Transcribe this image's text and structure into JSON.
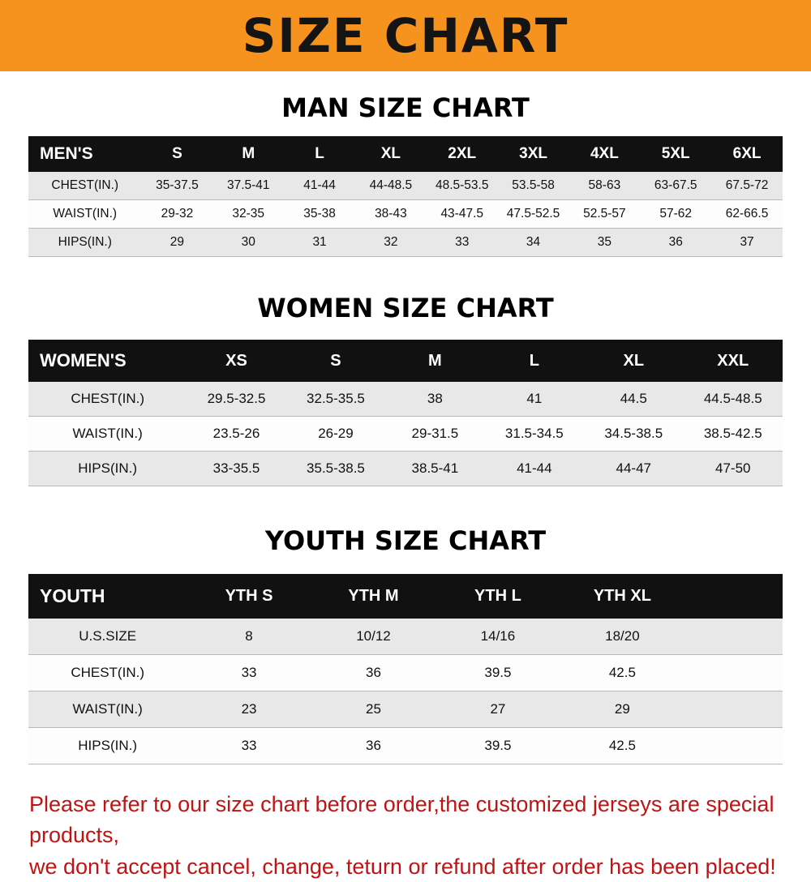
{
  "banner": {
    "title": "SIZE CHART",
    "background": "#f6921e"
  },
  "sections": [
    {
      "heading": "MAN SIZE CHART",
      "table": {
        "header_label": "MEN'S",
        "columns": [
          "S",
          "M",
          "L",
          "XL",
          "2XL",
          "3XL",
          "4XL",
          "5XL",
          "6XL"
        ],
        "rows": [
          {
            "label": "CHEST(IN.)",
            "values": [
              "35-37.5",
              "37.5-41",
              "41-44",
              "44-48.5",
              "48.5-53.5",
              "53.5-58",
              "58-63",
              "63-67.5",
              "67.5-72"
            ]
          },
          {
            "label": "WAIST(IN.)",
            "values": [
              "29-32",
              "32-35",
              "35-38",
              "38-43",
              "43-47.5",
              "47.5-52.5",
              "52.5-57",
              "57-62",
              "62-66.5"
            ]
          },
          {
            "label": "HIPS(IN.)",
            "values": [
              "29",
              "30",
              "31",
              "32",
              "33",
              "34",
              "35",
              "36",
              "37"
            ]
          }
        ]
      }
    },
    {
      "heading": "WOMEN SIZE CHART",
      "table": {
        "header_label": "WOMEN'S",
        "columns": [
          "XS",
          "S",
          "M",
          "L",
          "XL",
          "XXL"
        ],
        "rows": [
          {
            "label": "CHEST(IN.)",
            "values": [
              "29.5-32.5",
              "32.5-35.5",
              "38",
              "41",
              "44.5",
              "44.5-48.5"
            ]
          },
          {
            "label": "WAIST(IN.)",
            "values": [
              "23.5-26",
              "26-29",
              "29-31.5",
              "31.5-34.5",
              "34.5-38.5",
              "38.5-42.5"
            ]
          },
          {
            "label": "HIPS(IN.)",
            "values": [
              "33-35.5",
              "35.5-38.5",
              "38.5-41",
              "41-44",
              "44-47",
              "47-50"
            ]
          }
        ]
      }
    },
    {
      "heading": "YOUTH SIZE CHART",
      "table": {
        "header_label": "YOUTH",
        "columns": [
          "YTH S",
          "YTH M",
          "YTH L",
          "YTH XL"
        ],
        "filler_col": true,
        "rows": [
          {
            "label": "U.S.SIZE",
            "values": [
              "8",
              "10/12",
              "14/16",
              "18/20"
            ]
          },
          {
            "label": "CHEST(IN.)",
            "values": [
              "33",
              "36",
              "39.5",
              "42.5"
            ]
          },
          {
            "label": "WAIST(IN.)",
            "values": [
              "23",
              "25",
              "27",
              "29"
            ]
          },
          {
            "label": "HIPS(IN.)",
            "values": [
              "33",
              "36",
              "39.5",
              "42.5"
            ]
          }
        ]
      }
    }
  ],
  "footer": {
    "line1": "Please refer to our size chart before order,the customized jerseys are special products,",
    "line2": "we don't accept cancel, change, teturn or refund after order has been placed!",
    "color": "#c01414"
  }
}
